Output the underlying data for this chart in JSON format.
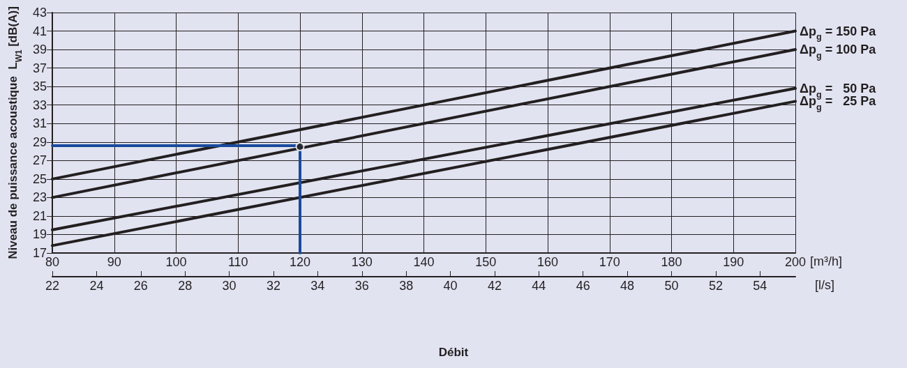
{
  "chart_data": {
    "type": "line",
    "xlabel": "[m³/h]",
    "x2label": "[l/s]",
    "ylabel": "Niveau de puissance acoustique  L$_{W1}$ [dB(A)]",
    "annotations": [
      "Débit"
    ],
    "xlim": [
      80,
      200
    ],
    "xticks": [
      80,
      90,
      100,
      110,
      120,
      130,
      140,
      150,
      160,
      170,
      180,
      190,
      200
    ],
    "x2lim": [
      22,
      55.6
    ],
    "x2ticks": [
      22,
      24,
      26,
      28,
      30,
      32,
      34,
      36,
      38,
      40,
      42,
      44,
      46,
      48,
      50,
      52,
      54
    ],
    "ylim": [
      17,
      43
    ],
    "yticks": [
      17,
      19,
      21,
      23,
      25,
      27,
      29,
      31,
      33,
      35,
      37,
      39,
      41,
      43
    ],
    "grid": true,
    "series": [
      {
        "name": "Δp$_{g}$ = 150 Pa",
        "color": "#231f20",
        "x": [
          80,
          200
        ],
        "values": [
          25,
          41
        ]
      },
      {
        "name": "Δp$_{g}$ = 100 Pa",
        "color": "#231f20",
        "x": [
          80,
          200
        ],
        "values": [
          23,
          39
        ]
      },
      {
        "name": "Δp$_{g}$ =   50 Pa",
        "color": "#231f20",
        "x": [
          80,
          200
        ],
        "values": [
          19.5,
          34.8
        ]
      },
      {
        "name": "Δp$_{g}$ =   25 Pa",
        "color": "#231f20",
        "x": [
          80,
          200
        ],
        "values": [
          17.8,
          33.4
        ]
      },
      {
        "color": "#1a4a9c",
        "x": [
          80,
          120,
          120
        ],
        "values": [
          28.6,
          28.6,
          17
        ]
      },
      {
        "type": "scatter",
        "marker": "circle",
        "color": "#231f20",
        "x": [
          120
        ],
        "values": [
          28.5
        ]
      }
    ]
  }
}
